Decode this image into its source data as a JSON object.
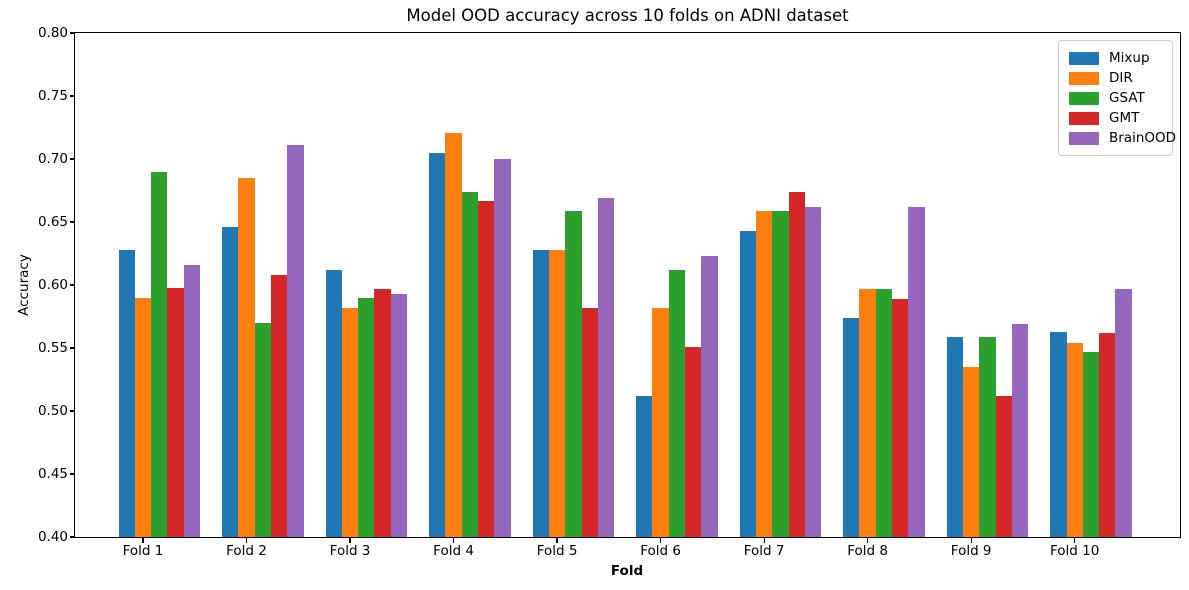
{
  "chart_data": {
    "type": "bar",
    "title": "Model OOD accuracy across 10 folds on ADNI dataset",
    "xlabel": "Fold",
    "ylabel": "Accuracy",
    "categories": [
      "Fold 1",
      "Fold 2",
      "Fold 3",
      "Fold 4",
      "Fold 5",
      "Fold 6",
      "Fold 7",
      "Fold 8",
      "Fold 9",
      "Fold 10"
    ],
    "series": [
      {
        "name": "Mixup",
        "color": "#1f77b4",
        "values": [
          0.628,
          0.646,
          0.612,
          0.705,
          0.628,
          0.512,
          0.643,
          0.574,
          0.559,
          0.563
        ]
      },
      {
        "name": "DIR",
        "color": "#ff7f0e",
        "values": [
          0.59,
          0.685,
          0.582,
          0.721,
          0.628,
          0.582,
          0.659,
          0.597,
          0.535,
          0.554
        ]
      },
      {
        "name": "GSAT",
        "color": "#2ca02c",
        "values": [
          0.69,
          0.57,
          0.59,
          0.674,
          0.659,
          0.612,
          0.659,
          0.597,
          0.559,
          0.547
        ]
      },
      {
        "name": "GMT",
        "color": "#d62728",
        "values": [
          0.598,
          0.608,
          0.597,
          0.667,
          0.582,
          0.551,
          0.674,
          0.589,
          0.512,
          0.562
        ]
      },
      {
        "name": "BrainOOD",
        "color": "#9467bd",
        "values": [
          0.616,
          0.711,
          0.593,
          0.7,
          0.669,
          0.623,
          0.662,
          0.662,
          0.569,
          0.597
        ]
      }
    ],
    "ylim": [
      0.4,
      0.8
    ],
    "ytick_labels": [
      "0.40",
      "0.45",
      "0.50",
      "0.55",
      "0.60",
      "0.65",
      "0.70",
      "0.75",
      "0.80"
    ],
    "legend_position": "upper right",
    "grid": false
  }
}
